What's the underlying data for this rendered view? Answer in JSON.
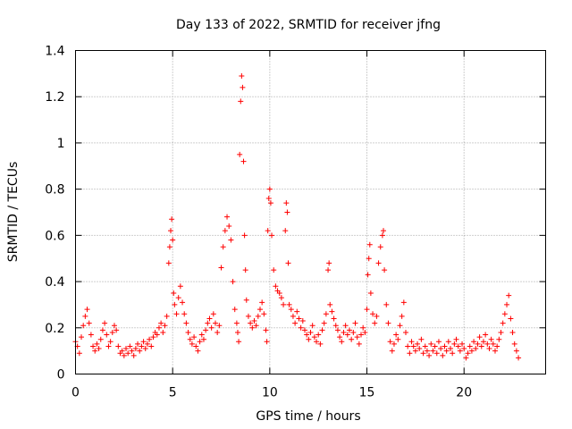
{
  "chart_data": {
    "type": "scatter",
    "title": "Day 133 of 2022, SRMTID for receiver jfng",
    "xlabel": "GPS time / hours",
    "ylabel": "SRMTID / TECUs",
    "xlim": [
      0,
      24.2
    ],
    "ylim": [
      0,
      1.4
    ],
    "x_ticks": [
      0,
      5,
      10,
      15,
      20
    ],
    "x_tick_labels": [
      "0",
      "5",
      "10",
      "15",
      "20"
    ],
    "y_ticks": [
      0,
      0.2,
      0.4,
      0.6,
      0.8,
      1.0,
      1.2,
      1.4
    ],
    "y_tick_labels": [
      "0",
      "0.2",
      "0.4",
      "0.6",
      "0.8",
      "1",
      "1.2",
      "1.4"
    ],
    "grid": true,
    "marker": "+",
    "marker_color": "#ff0000",
    "series": [
      {
        "name": "SRMTID",
        "points": [
          [
            0.0,
            0.14
          ],
          [
            0.1,
            0.12
          ],
          [
            0.2,
            0.09
          ],
          [
            0.3,
            0.16
          ],
          [
            0.4,
            0.21
          ],
          [
            0.5,
            0.25
          ],
          [
            0.6,
            0.28
          ],
          [
            0.7,
            0.22
          ],
          [
            0.8,
            0.17
          ],
          [
            0.9,
            0.12
          ],
          [
            1.0,
            0.1
          ],
          [
            1.1,
            0.13
          ],
          [
            1.2,
            0.11
          ],
          [
            1.3,
            0.15
          ],
          [
            1.4,
            0.19
          ],
          [
            1.5,
            0.22
          ],
          [
            1.6,
            0.17
          ],
          [
            1.7,
            0.12
          ],
          [
            1.8,
            0.14
          ],
          [
            1.9,
            0.18
          ],
          [
            2.0,
            0.21
          ],
          [
            2.1,
            0.19
          ],
          [
            2.2,
            0.12
          ],
          [
            2.3,
            0.09
          ],
          [
            2.4,
            0.1
          ],
          [
            2.5,
            0.08
          ],
          [
            2.6,
            0.11
          ],
          [
            2.7,
            0.09
          ],
          [
            2.8,
            0.12
          ],
          [
            2.9,
            0.1
          ],
          [
            3.0,
            0.08
          ],
          [
            3.1,
            0.11
          ],
          [
            3.2,
            0.13
          ],
          [
            3.3,
            0.1
          ],
          [
            3.4,
            0.12
          ],
          [
            3.5,
            0.14
          ],
          [
            3.6,
            0.11
          ],
          [
            3.7,
            0.13
          ],
          [
            3.8,
            0.15
          ],
          [
            3.9,
            0.12
          ],
          [
            4.0,
            0.16
          ],
          [
            4.1,
            0.18
          ],
          [
            4.2,
            0.17
          ],
          [
            4.3,
            0.2
          ],
          [
            4.4,
            0.22
          ],
          [
            4.5,
            0.18
          ],
          [
            4.6,
            0.21
          ],
          [
            4.7,
            0.25
          ],
          [
            4.8,
            0.48
          ],
          [
            4.85,
            0.55
          ],
          [
            4.9,
            0.62
          ],
          [
            4.95,
            0.67
          ],
          [
            5.0,
            0.58
          ],
          [
            5.05,
            0.35
          ],
          [
            5.1,
            0.3
          ],
          [
            5.2,
            0.26
          ],
          [
            5.3,
            0.33
          ],
          [
            5.4,
            0.38
          ],
          [
            5.5,
            0.31
          ],
          [
            5.6,
            0.26
          ],
          [
            5.7,
            0.22
          ],
          [
            5.8,
            0.18
          ],
          [
            5.9,
            0.15
          ],
          [
            6.0,
            0.13
          ],
          [
            6.1,
            0.16
          ],
          [
            6.2,
            0.12
          ],
          [
            6.3,
            0.1
          ],
          [
            6.4,
            0.14
          ],
          [
            6.5,
            0.17
          ],
          [
            6.6,
            0.15
          ],
          [
            6.7,
            0.19
          ],
          [
            6.8,
            0.22
          ],
          [
            6.9,
            0.24
          ],
          [
            7.0,
            0.2
          ],
          [
            7.1,
            0.26
          ],
          [
            7.2,
            0.22
          ],
          [
            7.3,
            0.18
          ],
          [
            7.4,
            0.21
          ],
          [
            7.5,
            0.46
          ],
          [
            7.6,
            0.55
          ],
          [
            7.7,
            0.62
          ],
          [
            7.8,
            0.68
          ],
          [
            7.9,
            0.64
          ],
          [
            8.0,
            0.58
          ],
          [
            8.1,
            0.4
          ],
          [
            8.2,
            0.28
          ],
          [
            8.3,
            0.22
          ],
          [
            8.35,
            0.18
          ],
          [
            8.4,
            0.14
          ],
          [
            8.45,
            0.95
          ],
          [
            8.5,
            1.18
          ],
          [
            8.55,
            1.29
          ],
          [
            8.6,
            1.24
          ],
          [
            8.65,
            0.92
          ],
          [
            8.7,
            0.6
          ],
          [
            8.75,
            0.45
          ],
          [
            8.8,
            0.32
          ],
          [
            8.9,
            0.25
          ],
          [
            9.0,
            0.22
          ],
          [
            9.1,
            0.2
          ],
          [
            9.2,
            0.23
          ],
          [
            9.3,
            0.21
          ],
          [
            9.4,
            0.25
          ],
          [
            9.5,
            0.28
          ],
          [
            9.6,
            0.31
          ],
          [
            9.7,
            0.26
          ],
          [
            9.8,
            0.19
          ],
          [
            9.85,
            0.14
          ],
          [
            9.9,
            0.62
          ],
          [
            9.95,
            0.76
          ],
          [
            10.0,
            0.8
          ],
          [
            10.05,
            0.74
          ],
          [
            10.1,
            0.6
          ],
          [
            10.2,
            0.45
          ],
          [
            10.3,
            0.38
          ],
          [
            10.4,
            0.36
          ],
          [
            10.5,
            0.35
          ],
          [
            10.6,
            0.33
          ],
          [
            10.7,
            0.3
          ],
          [
            10.8,
            0.62
          ],
          [
            10.85,
            0.74
          ],
          [
            10.9,
            0.7
          ],
          [
            10.95,
            0.48
          ],
          [
            11.0,
            0.3
          ],
          [
            11.1,
            0.28
          ],
          [
            11.2,
            0.25
          ],
          [
            11.3,
            0.22
          ],
          [
            11.4,
            0.27
          ],
          [
            11.5,
            0.24
          ],
          [
            11.6,
            0.2
          ],
          [
            11.7,
            0.23
          ],
          [
            11.8,
            0.19
          ],
          [
            11.9,
            0.17
          ],
          [
            12.0,
            0.15
          ],
          [
            12.1,
            0.18
          ],
          [
            12.2,
            0.21
          ],
          [
            12.3,
            0.16
          ],
          [
            12.4,
            0.14
          ],
          [
            12.5,
            0.17
          ],
          [
            12.6,
            0.13
          ],
          [
            12.7,
            0.19
          ],
          [
            12.8,
            0.22
          ],
          [
            12.9,
            0.26
          ],
          [
            13.0,
            0.45
          ],
          [
            13.05,
            0.48
          ],
          [
            13.1,
            0.3
          ],
          [
            13.2,
            0.27
          ],
          [
            13.3,
            0.24
          ],
          [
            13.4,
            0.21
          ],
          [
            13.5,
            0.19
          ],
          [
            13.6,
            0.16
          ],
          [
            13.7,
            0.14
          ],
          [
            13.8,
            0.18
          ],
          [
            13.9,
            0.21
          ],
          [
            14.0,
            0.17
          ],
          [
            14.1,
            0.19
          ],
          [
            14.2,
            0.15
          ],
          [
            14.3,
            0.18
          ],
          [
            14.4,
            0.22
          ],
          [
            14.5,
            0.16
          ],
          [
            14.6,
            0.13
          ],
          [
            14.7,
            0.17
          ],
          [
            14.8,
            0.2
          ],
          [
            14.9,
            0.18
          ],
          [
            15.0,
            0.28
          ],
          [
            15.05,
            0.43
          ],
          [
            15.1,
            0.5
          ],
          [
            15.15,
            0.56
          ],
          [
            15.2,
            0.35
          ],
          [
            15.3,
            0.26
          ],
          [
            15.4,
            0.22
          ],
          [
            15.5,
            0.25
          ],
          [
            15.6,
            0.48
          ],
          [
            15.7,
            0.55
          ],
          [
            15.8,
            0.6
          ],
          [
            15.85,
            0.62
          ],
          [
            15.9,
            0.45
          ],
          [
            16.0,
            0.3
          ],
          [
            16.1,
            0.22
          ],
          [
            16.2,
            0.14
          ],
          [
            16.3,
            0.1
          ],
          [
            16.4,
            0.13
          ],
          [
            16.5,
            0.17
          ],
          [
            16.6,
            0.15
          ],
          [
            16.7,
            0.21
          ],
          [
            16.8,
            0.25
          ],
          [
            16.9,
            0.31
          ],
          [
            17.0,
            0.18
          ],
          [
            17.1,
            0.12
          ],
          [
            17.2,
            0.09
          ],
          [
            17.3,
            0.14
          ],
          [
            17.4,
            0.12
          ],
          [
            17.5,
            0.1
          ],
          [
            17.6,
            0.13
          ],
          [
            17.7,
            0.11
          ],
          [
            17.8,
            0.15
          ],
          [
            17.9,
            0.09
          ],
          [
            18.0,
            0.12
          ],
          [
            18.1,
            0.1
          ],
          [
            18.2,
            0.08
          ],
          [
            18.3,
            0.13
          ],
          [
            18.4,
            0.1
          ],
          [
            18.5,
            0.12
          ],
          [
            18.6,
            0.09
          ],
          [
            18.7,
            0.14
          ],
          [
            18.8,
            0.11
          ],
          [
            18.9,
            0.08
          ],
          [
            19.0,
            0.12
          ],
          [
            19.1,
            0.1
          ],
          [
            19.2,
            0.14
          ],
          [
            19.3,
            0.11
          ],
          [
            19.4,
            0.09
          ],
          [
            19.5,
            0.13
          ],
          [
            19.6,
            0.15
          ],
          [
            19.7,
            0.12
          ],
          [
            19.8,
            0.1
          ],
          [
            19.9,
            0.13
          ],
          [
            20.0,
            0.11
          ],
          [
            20.1,
            0.07
          ],
          [
            20.2,
            0.09
          ],
          [
            20.3,
            0.12
          ],
          [
            20.4,
            0.1
          ],
          [
            20.5,
            0.14
          ],
          [
            20.6,
            0.11
          ],
          [
            20.7,
            0.13
          ],
          [
            20.8,
            0.16
          ],
          [
            20.9,
            0.12
          ],
          [
            21.0,
            0.14
          ],
          [
            21.1,
            0.17
          ],
          [
            21.2,
            0.13
          ],
          [
            21.3,
            0.11
          ],
          [
            21.4,
            0.15
          ],
          [
            21.5,
            0.13
          ],
          [
            21.6,
            0.1
          ],
          [
            21.7,
            0.12
          ],
          [
            21.8,
            0.15
          ],
          [
            21.9,
            0.18
          ],
          [
            22.0,
            0.22
          ],
          [
            22.1,
            0.26
          ],
          [
            22.2,
            0.3
          ],
          [
            22.3,
            0.34
          ],
          [
            22.4,
            0.24
          ],
          [
            22.5,
            0.18
          ],
          [
            22.6,
            0.13
          ],
          [
            22.7,
            0.1
          ],
          [
            22.8,
            0.07
          ]
        ]
      }
    ]
  }
}
